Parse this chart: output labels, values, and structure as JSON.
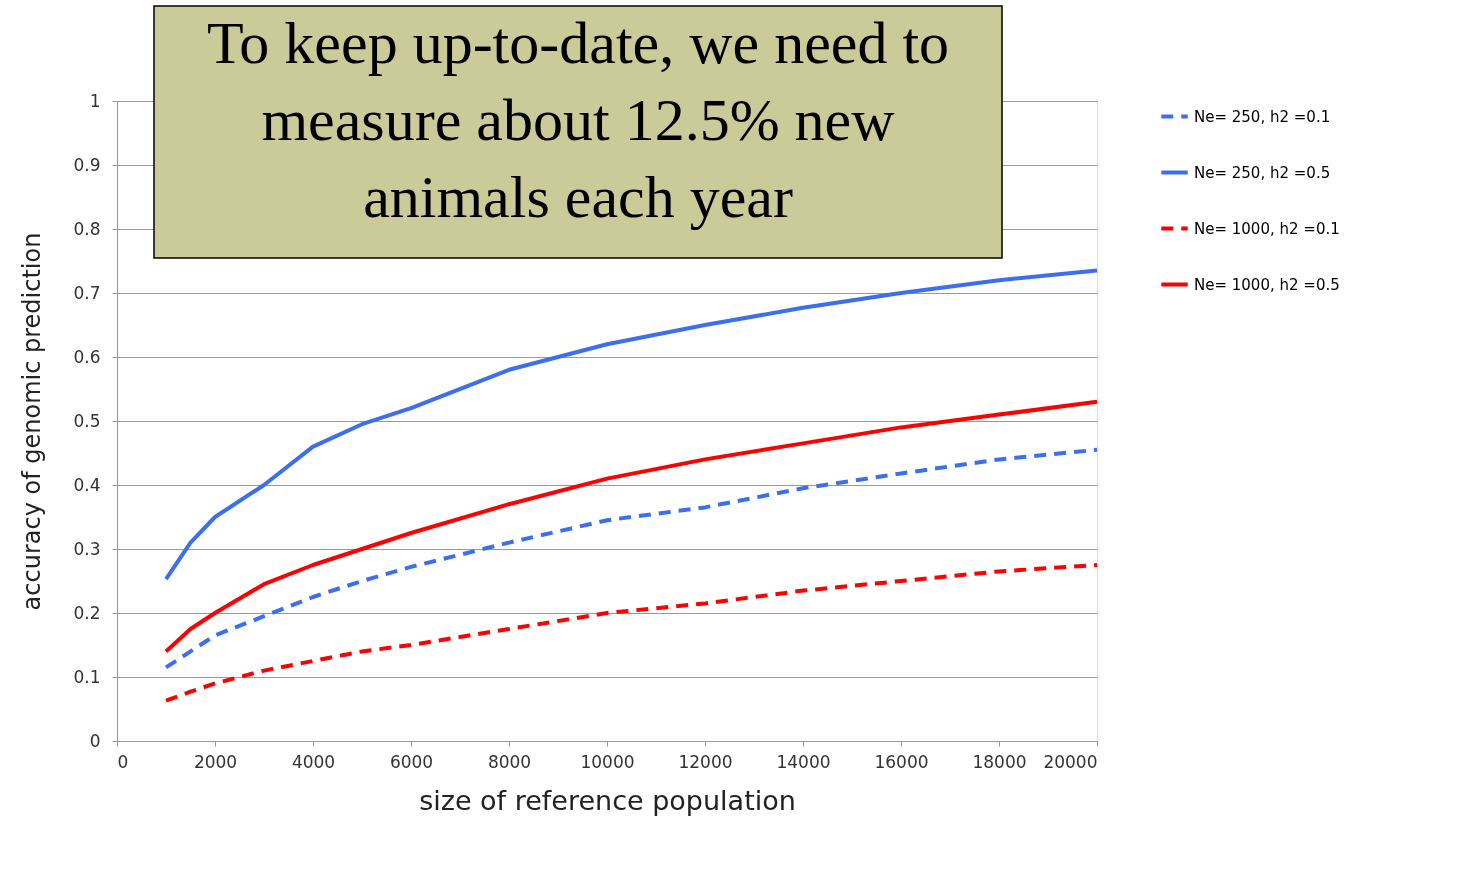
{
  "chart_data": {
    "type": "line",
    "xlabel": "size of reference population",
    "ylabel": "accuracy of genomic prediction",
    "annotations": [
      "To keep up-to-date, we need to measure about 12.5% new animals each year"
    ],
    "x": [
      1000,
      1500,
      2000,
      3000,
      4000,
      5000,
      6000,
      8000,
      10000,
      12000,
      14000,
      16000,
      18000,
      20000
    ],
    "series": [
      {
        "name": "Ne= 250, h2 =0.1",
        "color": "#3c6ff0",
        "line_style": "dashed",
        "values": [
          0.115,
          0.14,
          0.165,
          0.195,
          0.225,
          0.25,
          0.272,
          0.31,
          0.345,
          0.365,
          0.395,
          0.418,
          0.44,
          0.455
        ]
      },
      {
        "name": "Ne= 250, h2 =0.5",
        "color": "#3c6ff0",
        "line_style": "solid",
        "values": [
          0.253,
          0.31,
          0.35,
          0.4,
          0.46,
          0.495,
          0.52,
          0.58,
          0.62,
          0.65,
          0.677,
          0.7,
          0.72,
          0.735
        ]
      },
      {
        "name": "Ne= 1000, h2 =0.1",
        "color": "#ff0000",
        "line_style": "dashed",
        "values": [
          0.063,
          0.077,
          0.09,
          0.11,
          0.125,
          0.14,
          0.15,
          0.175,
          0.2,
          0.215,
          0.235,
          0.25,
          0.265,
          0.275
        ]
      },
      {
        "name": "Ne= 1000, h2 =0.5",
        "color": "#ff0000",
        "line_style": "solid",
        "values": [
          0.14,
          0.175,
          0.2,
          0.245,
          0.275,
          0.3,
          0.325,
          0.37,
          0.41,
          0.44,
          0.465,
          0.49,
          0.51,
          0.53
        ]
      }
    ],
    "xlim": [
      0,
      20000
    ],
    "xticks": [
      0,
      2000,
      4000,
      6000,
      8000,
      10000,
      12000,
      14000,
      16000,
      18000,
      20000
    ],
    "ylim": [
      0,
      1
    ],
    "yticks": [
      0,
      0.1,
      0.2,
      0.3,
      0.4,
      0.5,
      0.6,
      0.7,
      0.8,
      0.9,
      1
    ],
    "grid": "y",
    "legend": "right",
    "marker": "none"
  }
}
